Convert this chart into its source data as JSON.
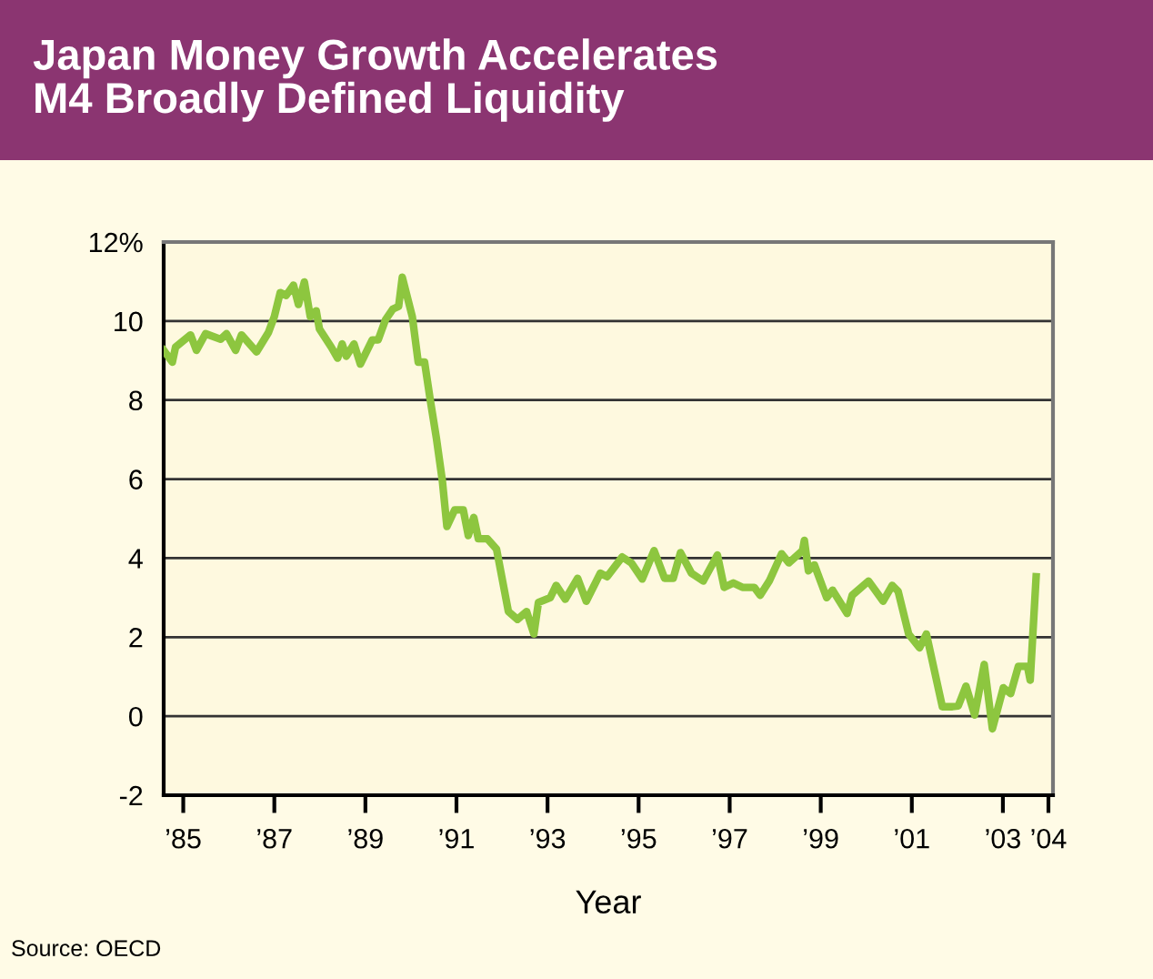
{
  "chart_data": {
    "type": "line",
    "title": "Japan Money Growth Accelerates\nM4 Broadly Defined Liquidity",
    "xlabel": "Year",
    "annotations": [
      "Source: OECD"
    ],
    "x": [
      1984.57,
      1984.76,
      1984.83,
      1985.16,
      1985.29,
      1985.49,
      1985.82,
      1985.95,
      1986.15,
      1986.28,
      1986.61,
      1986.87,
      1987.0,
      1987.13,
      1987.26,
      1987.42,
      1987.53,
      1987.66,
      1987.79,
      1987.92,
      1987.99,
      1988.25,
      1988.39,
      1988.49,
      1988.58,
      1988.75,
      1988.89,
      1989.15,
      1989.28,
      1989.44,
      1989.6,
      1989.73,
      1989.81,
      1990.03,
      1990.16,
      1990.3,
      1990.43,
      1990.56,
      1990.69,
      1990.79,
      1990.96,
      1991.15,
      1991.26,
      1991.38,
      1991.48,
      1991.68,
      1991.88,
      1992.14,
      1992.34,
      1992.54,
      1992.7,
      1992.8,
      1993.06,
      1993.19,
      1993.39,
      1993.66,
      1993.85,
      1994.16,
      1994.31,
      1994.64,
      1994.84,
      1995.08,
      1995.34,
      1995.57,
      1995.76,
      1995.92,
      1996.16,
      1996.42,
      1996.73,
      1996.88,
      1997.08,
      1997.28,
      1997.54,
      1997.67,
      1997.87,
      1998.14,
      1998.3,
      1998.6,
      1998.64,
      1998.73,
      1998.86,
      1999.13,
      1999.26,
      1999.58,
      1999.69,
      2000.05,
      2000.37,
      2000.57,
      2000.7,
      2000.93,
      2001.17,
      2001.32,
      2001.67,
      2001.89,
      2002.02,
      2002.19,
      2002.38,
      2002.59,
      2002.77,
      2003.01,
      2003.17,
      2003.34,
      2003.54,
      2003.6,
      2003.73
    ],
    "series": [
      {
        "color": "#8dc63f",
        "values": [
          9.26,
          8.96,
          9.34,
          9.65,
          9.26,
          9.68,
          9.54,
          9.68,
          9.26,
          9.65,
          9.22,
          9.71,
          10.11,
          10.72,
          10.65,
          10.91,
          10.42,
          10.99,
          10.11,
          10.26,
          9.8,
          9.34,
          9.06,
          9.42,
          9.11,
          9.42,
          8.91,
          9.52,
          9.52,
          10.03,
          10.3,
          10.37,
          11.11,
          10.11,
          8.96,
          8.96,
          7.96,
          7.03,
          5.96,
          4.8,
          5.22,
          5.22,
          4.57,
          5.03,
          4.49,
          4.49,
          4.23,
          2.65,
          2.45,
          2.65,
          2.08,
          2.88,
          3.0,
          3.31,
          2.96,
          3.49,
          2.91,
          3.62,
          3.53,
          4.03,
          3.88,
          3.47,
          4.19,
          3.49,
          3.49,
          4.14,
          3.62,
          3.42,
          4.08,
          3.26,
          3.37,
          3.26,
          3.26,
          3.06,
          3.42,
          4.11,
          3.88,
          4.19,
          4.45,
          3.68,
          3.83,
          3.0,
          3.19,
          2.6,
          3.06,
          3.42,
          2.91,
          3.31,
          3.16,
          2.08,
          1.73,
          2.08,
          0.24,
          0.24,
          0.26,
          0.76,
          0.03,
          1.31,
          -0.32,
          0.72,
          0.57,
          1.26,
          1.26,
          0.91,
          3.53
        ]
      }
    ],
    "xlim": [
      1984.57,
      2004.1
    ],
    "xticks": [
      {
        "value": 1985,
        "label": "’85"
      },
      {
        "value": 1987,
        "label": "’87"
      },
      {
        "value": 1989,
        "label": "’89"
      },
      {
        "value": 1991,
        "label": "’91"
      },
      {
        "value": 1993,
        "label": "’93"
      },
      {
        "value": 1995,
        "label": "’95"
      },
      {
        "value": 1997,
        "label": "’97"
      },
      {
        "value": 1999,
        "label": "’99"
      },
      {
        "value": 2001,
        "label": "’01"
      },
      {
        "value": 2003,
        "label": "’03"
      },
      {
        "value": 2004,
        "label": "’04"
      }
    ],
    "ylim": [
      -2,
      12
    ],
    "yticks": [
      -2,
      0,
      2,
      4,
      6,
      8,
      10,
      {
        "value": 12,
        "label": "12%"
      }
    ],
    "grid": "y",
    "marker": "none",
    "line_style": "solid"
  }
}
